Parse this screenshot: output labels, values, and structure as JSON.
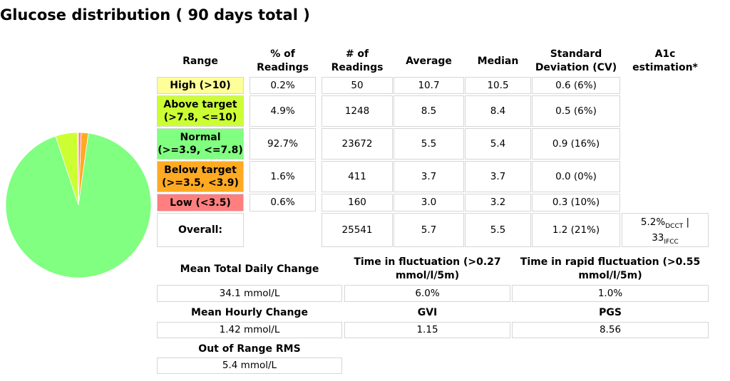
{
  "title": "Glucose distribution ( 90 days total )",
  "colors": {
    "high": "#ffff99",
    "above": "#ccff33",
    "normal": "#80ff80",
    "below": "#ffaa22",
    "low": "#ff7f7f"
  },
  "table": {
    "headers": {
      "range": "Range",
      "pct": "% of Readings",
      "count": "# of Readings",
      "avg": "Average",
      "median": "Median",
      "sd": "Standard Deviation (CV)",
      "a1c": "A1c estimation*"
    },
    "rows": [
      {
        "range": "High (>10)",
        "pct": "0.2%",
        "count": "50",
        "avg": "10.7",
        "median": "10.5",
        "sd": "0.6 (6%)"
      },
      {
        "range": "Above target (>7.8, <=10)",
        "pct": "4.9%",
        "count": "1248",
        "avg": "8.5",
        "median": "8.4",
        "sd": "0.5 (6%)"
      },
      {
        "range": "Normal (>=3.9, <=7.8)",
        "pct": "92.7%",
        "count": "23672",
        "avg": "5.5",
        "median": "5.4",
        "sd": "0.9 (16%)"
      },
      {
        "range": "Below target (>=3.5, <3.9)",
        "pct": "1.6%",
        "count": "411",
        "avg": "3.7",
        "median": "3.7",
        "sd": "0.0 (0%)"
      },
      {
        "range": "Low (<3.5)",
        "pct": "0.6%",
        "count": "160",
        "avg": "3.0",
        "median": "3.2",
        "sd": "0.3 (10%)"
      }
    ],
    "overall": {
      "label": "Overall:",
      "count": "25541",
      "avg": "5.7",
      "median": "5.5",
      "sd": "1.2 (21%)",
      "a1c_dcct": "5.2%",
      "a1c_dcct_sub": "DCCT",
      "a1c_sep": " |",
      "a1c_ifcc": "33",
      "a1c_ifcc_sub": "IFCC"
    }
  },
  "stats": {
    "mtdc_label": "Mean Total Daily Change",
    "mtdc_value": "34.1 mmol/L",
    "tif_label": "Time in fluctuation (>0.27 mmol/l/5m)",
    "tif_value": "6.0%",
    "trf_label": "Time in rapid fluctuation (>0.55 mmol/l/5m)",
    "trf_value": "1.0%",
    "mhc_label": "Mean Hourly Change",
    "mhc_value": "1.42 mmol/L",
    "gvi_label": "GVI",
    "gvi_value": "1.15",
    "pgs_label": "PGS",
    "pgs_value": "8.56",
    "oor_label": "Out of Range RMS",
    "oor_value": "5.4 mmol/L"
  },
  "chart_data": {
    "type": "pie",
    "title": "Glucose distribution ( 90 days total )",
    "slices": [
      {
        "label": "High (>10)",
        "value": 0.2,
        "color": "#ffff99"
      },
      {
        "label": "Above target (>7.8, <=10)",
        "value": 4.9,
        "color": "#ccff33"
      },
      {
        "label": "Normal (>=3.9, <=7.8)",
        "value": 92.7,
        "color": "#80ff80"
      },
      {
        "label": "Below target (>=3.5, <3.9)",
        "value": 1.6,
        "color": "#ffaa22"
      },
      {
        "label": "Low (<3.5)",
        "value": 0.6,
        "color": "#ff7f7f"
      }
    ],
    "legend": "none"
  }
}
